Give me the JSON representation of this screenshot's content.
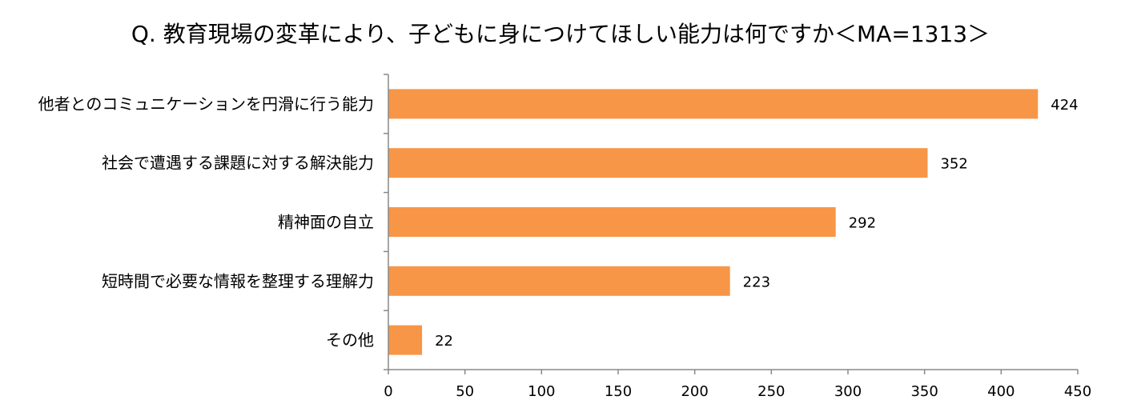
{
  "chart_data": {
    "type": "bar",
    "orientation": "horizontal",
    "title": "Q. 教育現場の変革により、子どもに身につけてほしい能力は何ですか＜MA=1313＞",
    "categories": [
      "他者とのコミュニケーションを円滑に行う能力",
      "社会で遭遇する課題に対する解決能力",
      "精神面の自立",
      "短時間で必要な情報を整理する理解力",
      "その他"
    ],
    "values": [
      424,
      352,
      292,
      223,
      22
    ],
    "value_labels": [
      "424",
      "352",
      "292",
      "223",
      "22"
    ],
    "xlim": [
      0,
      450
    ],
    "x_ticks": [
      0,
      50,
      100,
      150,
      200,
      250,
      300,
      350,
      400,
      450
    ],
    "x_tick_labels": [
      "0",
      "50",
      "100",
      "150",
      "200",
      "250",
      "300",
      "350",
      "400",
      "450"
    ],
    "bar_color": "#F79646",
    "grid": false,
    "legend": "none"
  }
}
